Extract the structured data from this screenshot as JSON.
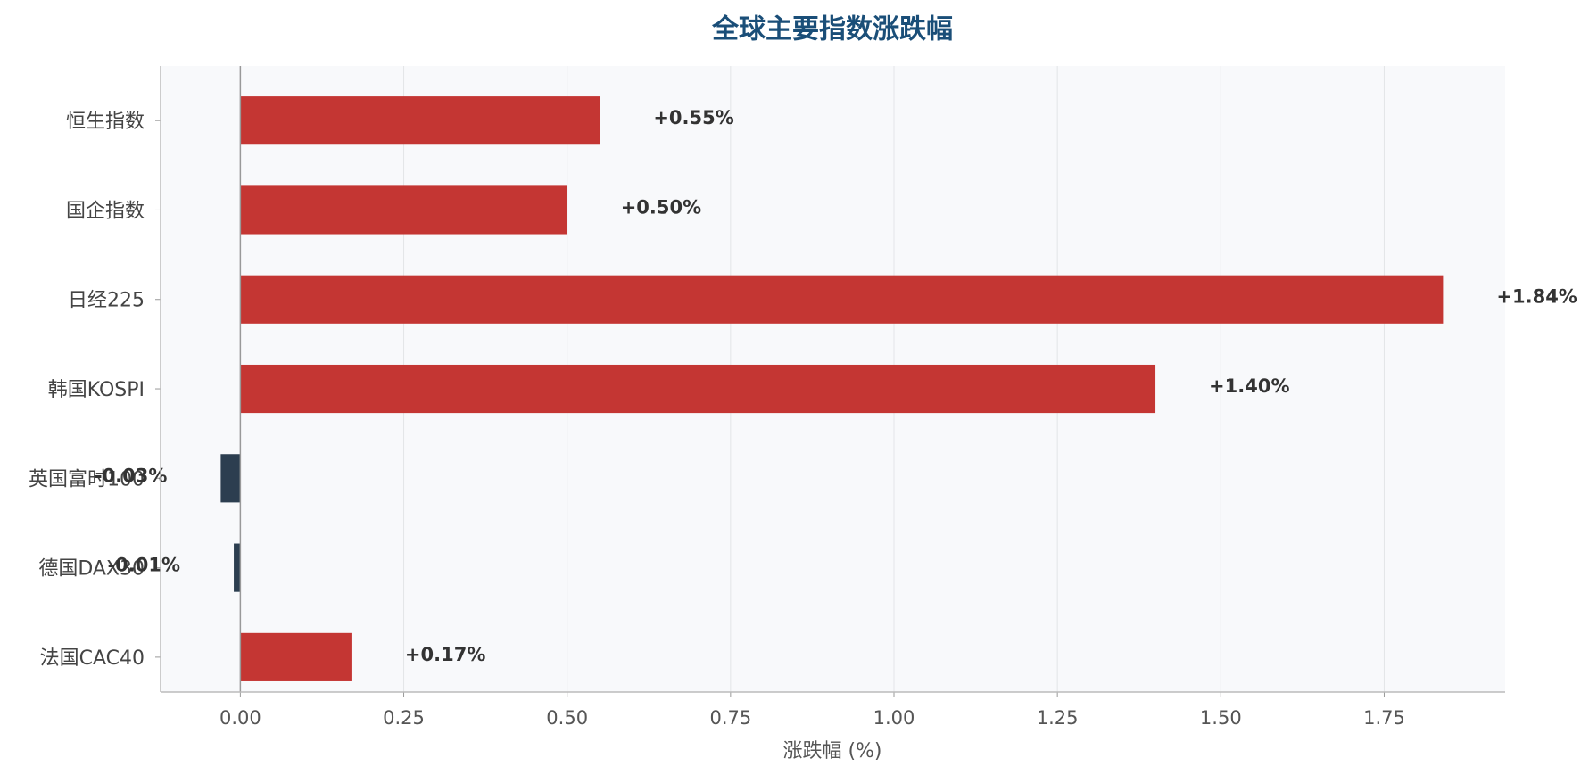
{
  "chart_data": {
    "type": "barh",
    "title": "全球主要指数涨跌幅",
    "x_label": "涨跌幅 (%)",
    "categories": [
      "恒生指数",
      "国企指数",
      "日经225",
      "韩国KOSPI",
      "英国富时100",
      "德国DAX30",
      "法国CAC40"
    ],
    "values": [
      0.55,
      0.5,
      1.84,
      1.4,
      -0.03,
      -0.01,
      0.17
    ],
    "value_labels": [
      "+0.55%",
      "+0.50%",
      "+1.84%",
      "+1.40%",
      "-0.03%",
      "-0.01%",
      "+0.17%"
    ],
    "positive_color": "#c43633",
    "negative_color": "#2c3e50",
    "xlim": [
      -0.122,
      1.935
    ],
    "xticks": [
      {
        "value": 0,
        "label": "0.00"
      },
      {
        "value": 0.25,
        "label": "0.25"
      },
      {
        "value": 0.5,
        "label": "0.50"
      },
      {
        "value": 0.75,
        "label": "0.75"
      },
      {
        "value": 1,
        "label": "1.00"
      },
      {
        "value": 1.25,
        "label": "1.25"
      },
      {
        "value": 1.5,
        "label": "1.50"
      },
      {
        "value": 1.75,
        "label": "1.75"
      }
    ],
    "grid": true
  }
}
